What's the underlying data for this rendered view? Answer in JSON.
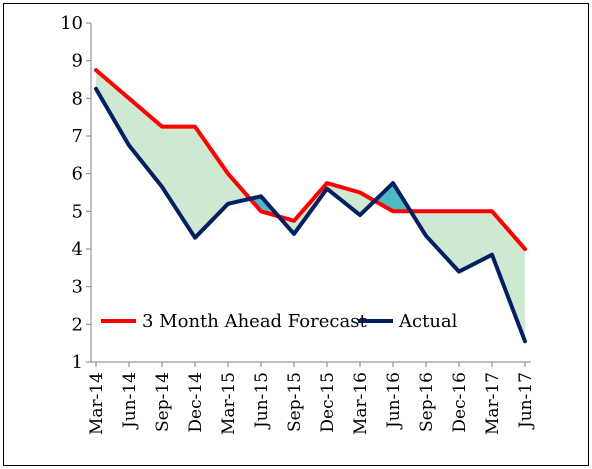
{
  "colors": {
    "forecast": "#ff0000",
    "actual": "#002060",
    "fill_above": "#cfe8d2",
    "fill_below": "#4fb9c7",
    "axis": "#7f7f7f"
  },
  "chart_data": {
    "type": "line",
    "title": "",
    "xlabel": "",
    "ylabel": "",
    "ylim": [
      1,
      10
    ],
    "yticks": [
      "1",
      "2",
      "3",
      "4",
      "5",
      "6",
      "7",
      "8",
      "9",
      "10"
    ],
    "grid": false,
    "legend_position": "bottom-center",
    "categories": [
      "Mar-14",
      "Jun-14",
      "Sep-14",
      "Dec-14",
      "Mar-15",
      "Jun-15",
      "Sep-15",
      "Dec-15",
      "Mar-16",
      "Jun-16",
      "Sep-16",
      "Dec-16",
      "Mar-17",
      "Jun-17"
    ],
    "series": [
      {
        "name": "3 Month Ahead Forecast",
        "values": [
          8.75,
          8.0,
          7.25,
          7.25,
          6.0,
          5.0,
          4.75,
          5.75,
          5.5,
          5.0,
          5.0,
          5.0,
          5.0,
          4.0
        ]
      },
      {
        "name": "Actual",
        "values": [
          8.25,
          6.75,
          5.65,
          4.3,
          5.2,
          5.4,
          4.4,
          5.6,
          4.9,
          5.75,
          4.35,
          3.4,
          3.85,
          1.55
        ]
      }
    ]
  }
}
